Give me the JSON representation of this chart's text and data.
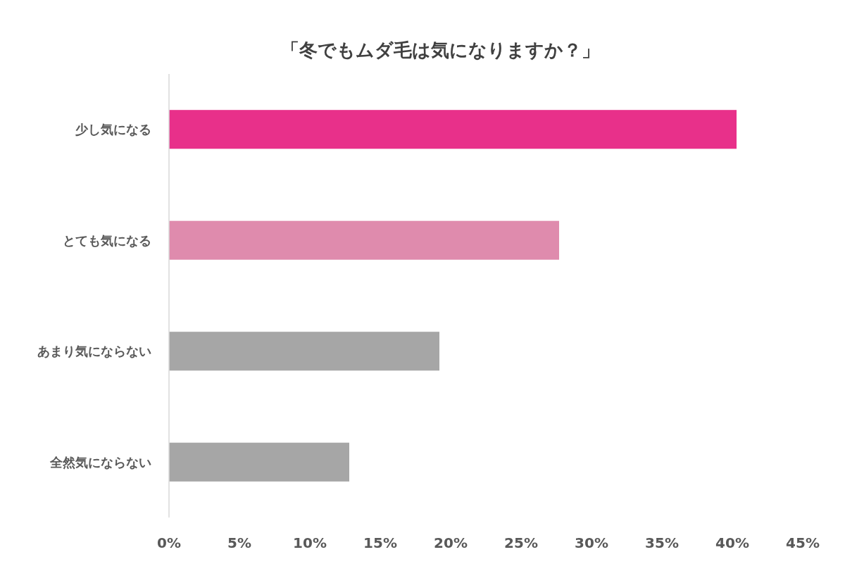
{
  "chart_data": {
    "type": "bar",
    "orientation": "horizontal",
    "title": "「冬でもムダ毛は気になりますか？」",
    "categories": [
      "少し気になる",
      "とても気になる",
      "あまり気にならない",
      "全然気にならない"
    ],
    "values": [
      40.3,
      27.7,
      19.2,
      12.8
    ],
    "colors": [
      "#e8308a",
      "#df8bad",
      "#a6a6a6",
      "#a6a6a6"
    ],
    "xlim": [
      0,
      45
    ],
    "xticks": [
      {
        "value": 0,
        "label": "0%"
      },
      {
        "value": 5,
        "label": "5%"
      },
      {
        "value": 10,
        "label": "10%"
      },
      {
        "value": 15,
        "label": "15%"
      },
      {
        "value": 20,
        "label": "20%"
      },
      {
        "value": 25,
        "label": "25%"
      },
      {
        "value": 30,
        "label": "30%"
      },
      {
        "value": 35,
        "label": "35%"
      },
      {
        "value": 40,
        "label": "40%"
      },
      {
        "value": 45,
        "label": "45%"
      }
    ],
    "grid": false
  }
}
